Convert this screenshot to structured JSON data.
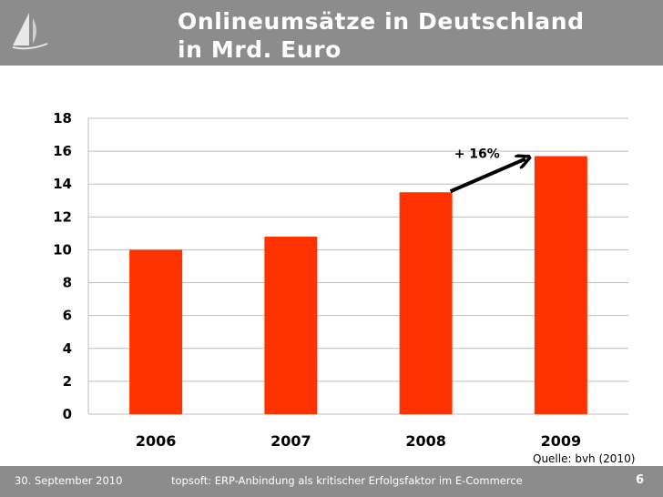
{
  "header": {
    "title_line1": "Onlineumsätze in Deutschland",
    "title_line2": "in Mrd. Euro"
  },
  "colors": {
    "header_bg": "#8c8c8c",
    "bar": "#ff3300",
    "arrow": "#000000"
  },
  "chart_data": {
    "type": "bar",
    "categories": [
      "2006",
      "2007",
      "2008",
      "2009"
    ],
    "values": [
      10.0,
      10.8,
      13.5,
      15.7
    ],
    "yticks": [
      0,
      2,
      4,
      6,
      8,
      10,
      12,
      14,
      16,
      18
    ],
    "ylim": [
      0,
      18
    ],
    "grid": true,
    "title": "",
    "xlabel": "",
    "ylabel": "",
    "annotation": {
      "text": "+ 16%",
      "from_category": "2008",
      "to_category": "2009"
    }
  },
  "source": "Quelle: bvh (2010)",
  "footer": {
    "date": "30. September 2010",
    "topic": "topsoft: ERP-Anbindung als kritischer Erfolgsfaktor im E-Commerce",
    "page": "6"
  }
}
